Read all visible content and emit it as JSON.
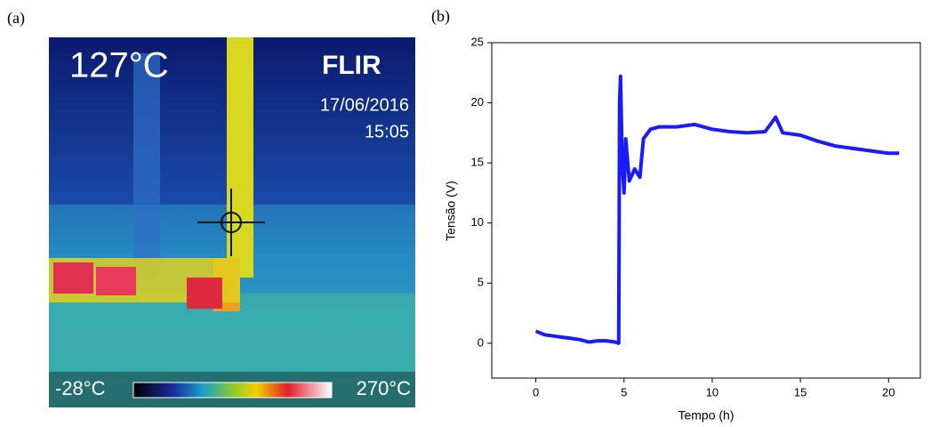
{
  "panel_a": {
    "label": "(a)",
    "temperature": "127°C",
    "brand": "FLIR",
    "date": "17/06/2016",
    "time": "15:05",
    "scale_min": "-28°C",
    "scale_max": "270°C"
  },
  "chart_data": {
    "type": "line",
    "label": "(b)",
    "x_label": "Tempo (h)",
    "y_label": "Tensão (V)",
    "color": "#1a1aff",
    "x": [
      0,
      0.5,
      1,
      1.5,
      2,
      2.5,
      3,
      3.5,
      4,
      4.5,
      4.7,
      4.75,
      4.8,
      4.9,
      5.0,
      5.1,
      5.3,
      5.6,
      5.9,
      6.1,
      6.5,
      7,
      8,
      9,
      10,
      11,
      12,
      13,
      13.6,
      14,
      15,
      16,
      17,
      18,
      19,
      20,
      20.6
    ],
    "values": [
      1.0,
      0.7,
      0.6,
      0.5,
      0.4,
      0.3,
      0.1,
      0.2,
      0.2,
      0.1,
      0.0,
      20,
      22.2,
      15,
      12.5,
      17,
      13.5,
      14.5,
      13.8,
      17,
      17.8,
      18,
      18,
      18.2,
      17.8,
      17.6,
      17.5,
      17.6,
      18.8,
      17.5,
      17.3,
      16.8,
      16.4,
      16.2,
      16,
      15.8,
      15.8
    ],
    "xlim": [
      -2.5,
      21.8
    ],
    "ylim": [
      -2.9,
      25
    ],
    "xticks": [
      0,
      5,
      10,
      15,
      20
    ],
    "yticks": [
      0,
      5,
      10,
      15,
      20,
      25
    ]
  }
}
